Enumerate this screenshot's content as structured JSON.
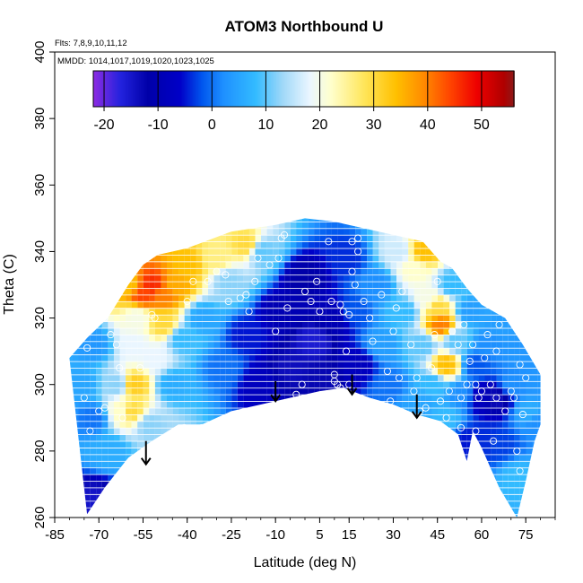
{
  "chart_data": {
    "type": "heatmap",
    "title": "ATOM3 Northbound U",
    "xlabel": "Latitude (deg N)",
    "ylabel": "Theta (C)",
    "xlim": [
      -85,
      85
    ],
    "ylim": [
      260,
      400
    ],
    "x_ticks": [
      -85,
      -70,
      -55,
      -40,
      -25,
      -10,
      5,
      15,
      30,
      45,
      60,
      75
    ],
    "y_ticks": [
      260,
      280,
      300,
      320,
      340,
      360,
      380,
      400
    ],
    "annotation_lines": [
      "Flts: 7,8,9,10,11,12",
      "MMDD: 1014,1017,1019,1020,1023,1025"
    ],
    "colorbar": {
      "ticks": [
        -20,
        -10,
        0,
        10,
        20,
        30,
        40,
        50
      ],
      "range": [
        -22,
        56
      ],
      "stops": [
        {
          "v": -22,
          "c": "#8a2be2"
        },
        {
          "v": -17,
          "c": "#2222dd"
        },
        {
          "v": -12,
          "c": "#0000a8"
        },
        {
          "v": -6,
          "c": "#0000c8"
        },
        {
          "v": -2,
          "c": "#0055ee"
        },
        {
          "v": 2,
          "c": "#1e90ff"
        },
        {
          "v": 8,
          "c": "#33bbff"
        },
        {
          "v": 13,
          "c": "#a0d8f8"
        },
        {
          "v": 18,
          "c": "#eaf6ff"
        },
        {
          "v": 22,
          "c": "#ffffcc"
        },
        {
          "v": 28,
          "c": "#ffe65c"
        },
        {
          "v": 34,
          "c": "#ffc000"
        },
        {
          "v": 39,
          "c": "#ff8c00"
        },
        {
          "v": 44,
          "c": "#ff4500"
        },
        {
          "v": 49,
          "c": "#ee0000"
        },
        {
          "v": 54,
          "c": "#b00000"
        },
        {
          "v": 56,
          "c": "#8b1a1a"
        }
      ]
    },
    "domain_envelope": {
      "bottom": [
        [
          -74,
          261
        ],
        [
          -68,
          269
        ],
        [
          -60,
          278
        ],
        [
          -52,
          283
        ],
        [
          -43,
          288
        ],
        [
          -35,
          288
        ],
        [
          -25,
          292
        ],
        [
          -15,
          294
        ],
        [
          -5,
          296
        ],
        [
          5,
          298
        ],
        [
          13,
          299
        ],
        [
          22,
          296
        ],
        [
          30,
          294
        ],
        [
          38,
          291
        ],
        [
          46,
          289
        ],
        [
          52,
          285
        ],
        [
          55,
          277
        ],
        [
          57,
          286
        ],
        [
          60,
          281
        ],
        [
          66,
          269
        ],
        [
          72,
          260
        ],
        [
          75,
          271
        ],
        [
          78,
          283
        ],
        [
          80,
          288
        ]
      ],
      "top": [
        [
          -80,
          308
        ],
        [
          -74,
          314
        ],
        [
          -67,
          320
        ],
        [
          -60,
          330
        ],
        [
          -55,
          336
        ],
        [
          -50,
          339
        ],
        [
          -40,
          341
        ],
        [
          -25,
          346
        ],
        [
          -10,
          348
        ],
        [
          0,
          350
        ],
        [
          10,
          349
        ],
        [
          20,
          347
        ],
        [
          30,
          345
        ],
        [
          40,
          343
        ],
        [
          46,
          337
        ],
        [
          50,
          335
        ],
        [
          55,
          329
        ],
        [
          60,
          324
        ],
        [
          68,
          320
        ],
        [
          74,
          312
        ],
        [
          80,
          303
        ]
      ]
    },
    "field_points": [
      {
        "lat": -76,
        "theta": 300,
        "u": 5
      },
      {
        "lat": -72,
        "theta": 290,
        "u": 0
      },
      {
        "lat": -71,
        "theta": 265,
        "u": -15
      },
      {
        "lat": -72,
        "theta": 312,
        "u": 3
      },
      {
        "lat": -66,
        "theta": 280,
        "u": 6
      },
      {
        "lat": -64,
        "theta": 300,
        "u": 12
      },
      {
        "lat": -62,
        "theta": 292,
        "u": 22
      },
      {
        "lat": -59,
        "theta": 292,
        "u": 30
      },
      {
        "lat": -58,
        "theta": 300,
        "u": 32
      },
      {
        "lat": -58,
        "theta": 312,
        "u": 18
      },
      {
        "lat": -57,
        "theta": 320,
        "u": 20
      },
      {
        "lat": -60,
        "theta": 330,
        "u": 34
      },
      {
        "lat": -55,
        "theta": 327,
        "u": 44
      },
      {
        "lat": -52,
        "theta": 330,
        "u": 46
      },
      {
        "lat": -48,
        "theta": 327,
        "u": 40
      },
      {
        "lat": -44,
        "theta": 330,
        "u": 36
      },
      {
        "lat": -48,
        "theta": 318,
        "u": 30
      },
      {
        "lat": -51,
        "theta": 308,
        "u": 18
      },
      {
        "lat": -53,
        "theta": 288,
        "u": 12
      },
      {
        "lat": -45,
        "theta": 300,
        "u": 6
      },
      {
        "lat": -42,
        "theta": 314,
        "u": 8
      },
      {
        "lat": -35,
        "theta": 320,
        "u": 5
      },
      {
        "lat": -40,
        "theta": 336,
        "u": 34
      },
      {
        "lat": -30,
        "theta": 338,
        "u": 26
      },
      {
        "lat": -26,
        "theta": 331,
        "u": 12
      },
      {
        "lat": -20,
        "theta": 342,
        "u": 30
      },
      {
        "lat": -15,
        "theta": 340,
        "u": 10
      },
      {
        "lat": -28,
        "theta": 305,
        "u": 0
      },
      {
        "lat": -20,
        "theta": 315,
        "u": -5
      },
      {
        "lat": -15,
        "theta": 300,
        "u": -8
      },
      {
        "lat": -8,
        "theta": 322,
        "u": -10
      },
      {
        "lat": -5,
        "theta": 305,
        "u": -14
      },
      {
        "lat": 0,
        "theta": 332,
        "u": -12
      },
      {
        "lat": 3,
        "theta": 313,
        "u": -16
      },
      {
        "lat": 6,
        "theta": 302,
        "u": -13
      },
      {
        "lat": 10,
        "theta": 320,
        "u": -10
      },
      {
        "lat": 14,
        "theta": 338,
        "u": -4
      },
      {
        "lat": 16,
        "theta": 322,
        "u": -2
      },
      {
        "lat": 18,
        "theta": 306,
        "u": -8
      },
      {
        "lat": 24,
        "theta": 330,
        "u": 2
      },
      {
        "lat": 26,
        "theta": 312,
        "u": 4
      },
      {
        "lat": 29,
        "theta": 300,
        "u": 0
      },
      {
        "lat": 32,
        "theta": 340,
        "u": 16
      },
      {
        "lat": 34,
        "theta": 322,
        "u": 8
      },
      {
        "lat": 37,
        "theta": 335,
        "u": 22
      },
      {
        "lat": 40,
        "theta": 340,
        "u": 34
      },
      {
        "lat": 41,
        "theta": 326,
        "u": 20
      },
      {
        "lat": 40,
        "theta": 312,
        "u": 10
      },
      {
        "lat": 39,
        "theta": 295,
        "u": 5
      },
      {
        "lat": 43,
        "theta": 300,
        "u": 8
      },
      {
        "lat": 45,
        "theta": 323,
        "u": 30
      },
      {
        "lat": 46,
        "theta": 318,
        "u": 40
      },
      {
        "lat": 48,
        "theta": 306,
        "u": 34
      },
      {
        "lat": 48,
        "theta": 290,
        "u": 8
      },
      {
        "lat": 50,
        "theta": 330,
        "u": 8
      },
      {
        "lat": 51,
        "theta": 313,
        "u": 10
      },
      {
        "lat": 53,
        "theta": 297,
        "u": 2
      },
      {
        "lat": 55,
        "theta": 283,
        "u": -5
      },
      {
        "lat": 56,
        "theta": 322,
        "u": 4
      },
      {
        "lat": 58,
        "theta": 306,
        "u": -2
      },
      {
        "lat": 60,
        "theta": 296,
        "u": -8
      },
      {
        "lat": 61,
        "theta": 283,
        "u": -4
      },
      {
        "lat": 62,
        "theta": 312,
        "u": 2
      },
      {
        "lat": 65,
        "theta": 296,
        "u": -14
      },
      {
        "lat": 66,
        "theta": 282,
        "u": -3
      },
      {
        "lat": 67,
        "theta": 318,
        "u": 4
      },
      {
        "lat": 70,
        "theta": 300,
        "u": 2
      },
      {
        "lat": 72,
        "theta": 272,
        "u": 8
      },
      {
        "lat": 73,
        "theta": 310,
        "u": 3
      },
      {
        "lat": 76,
        "theta": 292,
        "u": 6
      },
      {
        "lat": 79,
        "theta": 288,
        "u": 2
      },
      {
        "lat": 79,
        "theta": 300,
        "u": 3
      }
    ],
    "observations": [
      [
        -71.5,
        261
      ],
      [
        -73,
        286
      ],
      [
        -75,
        296
      ],
      [
        -70,
        292
      ],
      [
        -68,
        293
      ],
      [
        -74,
        311
      ],
      [
        -67,
        329
      ],
      [
        -68,
        320
      ],
      [
        -66,
        315
      ],
      [
        -64,
        312
      ],
      [
        -63,
        305
      ],
      [
        -62,
        290
      ],
      [
        -56,
        305
      ],
      [
        -52,
        321
      ],
      [
        -51,
        320
      ],
      [
        -40,
        325
      ],
      [
        -38,
        331
      ],
      [
        -41,
        287
      ],
      [
        -35,
        287
      ],
      [
        -33,
        331
      ],
      [
        -30,
        334
      ],
      [
        -27,
        333
      ],
      [
        -26,
        325
      ],
      [
        -22,
        326
      ],
      [
        -20,
        327
      ],
      [
        -19,
        322
      ],
      [
        -17,
        331
      ],
      [
        -16,
        338
      ],
      [
        -12,
        336
      ],
      [
        -9,
        338
      ],
      [
        -10,
        316
      ],
      [
        -8,
        344
      ],
      [
        -7,
        345
      ],
      [
        -6,
        323
      ],
      [
        -3,
        297
      ],
      [
        -1,
        300
      ],
      [
        0,
        328
      ],
      [
        2,
        325
      ],
      [
        4,
        331
      ],
      [
        5,
        322
      ],
      [
        8,
        343
      ],
      [
        9,
        325
      ],
      [
        10,
        301
      ],
      [
        10,
        303
      ],
      [
        11,
        300
      ],
      [
        12,
        299
      ],
      [
        12,
        324
      ],
      [
        13,
        322
      ],
      [
        14,
        310
      ],
      [
        15,
        321
      ],
      [
        15,
        300
      ],
      [
        16,
        343
      ],
      [
        16,
        334
      ],
      [
        17,
        330
      ],
      [
        18,
        340
      ],
      [
        18,
        344
      ],
      [
        20,
        325
      ],
      [
        22,
        320
      ],
      [
        23,
        313
      ],
      [
        26,
        327
      ],
      [
        28,
        304
      ],
      [
        29,
        295
      ],
      [
        30,
        316
      ],
      [
        31,
        323
      ],
      [
        32,
        302
      ],
      [
        33,
        328
      ],
      [
        36,
        312
      ],
      [
        37,
        298
      ],
      [
        38,
        302
      ],
      [
        39,
        292
      ],
      [
        41,
        293
      ],
      [
        43,
        305
      ],
      [
        44,
        315
      ],
      [
        45,
        331
      ],
      [
        46,
        295
      ],
      [
        48,
        290
      ],
      [
        49,
        298
      ],
      [
        50,
        316
      ],
      [
        52,
        312
      ],
      [
        53,
        296
      ],
      [
        53,
        287
      ],
      [
        54,
        318
      ],
      [
        55,
        300
      ],
      [
        56,
        307
      ],
      [
        57,
        312
      ],
      [
        58,
        300
      ],
      [
        58,
        286
      ],
      [
        59,
        296
      ],
      [
        60,
        298
      ],
      [
        61,
        308
      ],
      [
        62,
        315
      ],
      [
        63,
        300
      ],
      [
        64,
        283
      ],
      [
        65,
        296
      ],
      [
        65,
        310
      ],
      [
        66,
        318
      ],
      [
        68,
        292
      ],
      [
        70,
        298
      ],
      [
        71,
        296
      ],
      [
        72,
        280
      ],
      [
        73,
        274
      ],
      [
        73,
        306
      ],
      [
        74,
        291
      ],
      [
        75,
        302
      ]
    ],
    "arrows": [
      {
        "lat": -54,
        "theta_top": 283,
        "theta_tip": 276
      },
      {
        "lat": -10,
        "theta_top": 301,
        "theta_tip": 295
      },
      {
        "lat": 16,
        "theta_top": 303,
        "theta_tip": 297
      },
      {
        "lat": 38,
        "theta_top": 297,
        "theta_tip": 290
      }
    ]
  },
  "colors": {
    "observation_marker": "#ffffff",
    "arrow": "#000000",
    "axis": "#000000"
  }
}
